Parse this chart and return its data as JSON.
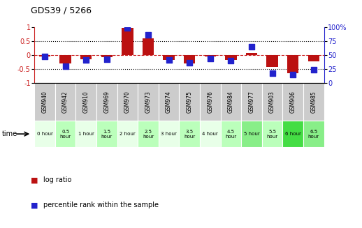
{
  "title": "GDS39 / 5266",
  "samples": [
    "GSM940",
    "GSM942",
    "GSM910",
    "GSM969",
    "GSM970",
    "GSM973",
    "GSM974",
    "GSM975",
    "GSM976",
    "GSM984",
    "GSM977",
    "GSM903",
    "GSM906",
    "GSM985"
  ],
  "time_labels": [
    "0 hour",
    "0.5\nhour",
    "1 hour",
    "1.5\nhour",
    "2 hour",
    "2.5\nhour",
    "3 hour",
    "3.5\nhour",
    "4 hour",
    "4.5\nhour",
    "5 hour",
    "5.5\nhour",
    "6 hour",
    "6.5\nhour"
  ],
  "log_ratio": [
    -0.05,
    -0.28,
    -0.15,
    -0.07,
    0.97,
    0.6,
    -0.17,
    -0.3,
    -0.05,
    -0.16,
    0.08,
    -0.42,
    -0.65,
    -0.22
  ],
  "percentile": [
    48,
    30,
    42,
    43,
    99,
    87,
    42,
    37,
    44,
    41,
    65,
    18,
    15,
    24
  ],
  "time_bg_colors": [
    "#e8ffe8",
    "#bbffbb",
    "#e8ffe8",
    "#bbffbb",
    "#e8ffe8",
    "#bbffbb",
    "#e8ffe8",
    "#bbffbb",
    "#e8ffe8",
    "#bbffbb",
    "#88ee88",
    "#bbffbb",
    "#44dd44",
    "#88ee88"
  ],
  "bar_color": "#bb1111",
  "dot_color": "#2222cc",
  "zero_line_color": "#cc2222",
  "ylim_left": [
    -1,
    1
  ],
  "ylim_right": [
    0,
    100
  ],
  "yticks_left": [
    -1,
    -0.5,
    0,
    0.5,
    1
  ],
  "ytick_labels_left": [
    "-1",
    "-0.5",
    "0",
    "0.5",
    "1"
  ],
  "yticks_right": [
    0,
    25,
    50,
    75,
    100
  ],
  "ytick_labels_right": [
    "0",
    "25",
    "50",
    "75",
    "100%"
  ],
  "sample_bg_color": "#cccccc",
  "legend_red_label": "log ratio",
  "legend_blue_label": "percentile rank within the sample"
}
